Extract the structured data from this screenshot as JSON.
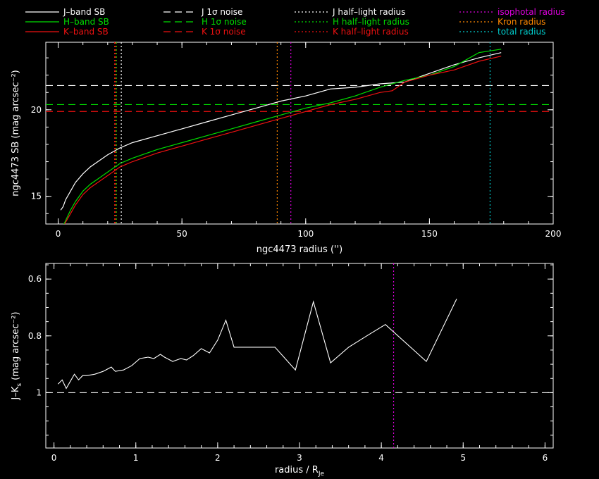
{
  "legend": {
    "items": [
      {
        "label": "J–band SB",
        "color": "#ffffff",
        "dash": "solid"
      },
      {
        "label": "H–band SB",
        "color": "#00dd00",
        "dash": "solid"
      },
      {
        "label": "K–band SB",
        "color": "#ee1111",
        "dash": "solid"
      },
      {
        "label": "J 1σ noise",
        "color": "#ffffff",
        "dash": "dashed"
      },
      {
        "label": "H 1σ noise",
        "color": "#00dd00",
        "dash": "dashed"
      },
      {
        "label": "K 1σ noise",
        "color": "#ee1111",
        "dash": "dashed"
      },
      {
        "label": "J half–light radius",
        "color": "#ffffff",
        "dash": "dotted"
      },
      {
        "label": "H half–light radius",
        "color": "#00dd00",
        "dash": "dotted"
      },
      {
        "label": "K half–light radius",
        "color": "#ee1111",
        "dash": "dotted"
      },
      {
        "label": "isophotal radius",
        "color": "#dd00dd",
        "dash": "dotted"
      },
      {
        "label": "Kron radius",
        "color": "#ff8800",
        "dash": "dotted"
      },
      {
        "label": "total radius",
        "color": "#00cccc",
        "dash": "dotted"
      }
    ]
  },
  "chart_data": [
    {
      "type": "line",
      "xlabel": "ngc4473 radius ('')",
      "ylabel": "ngc4473 SB (mag arcsec⁻²)",
      "xlim": [
        -5,
        200
      ],
      "ylim": [
        23.9,
        13.4
      ],
      "xticks": [
        0,
        50,
        100,
        150,
        200
      ],
      "yticks": [
        15,
        20
      ],
      "series": [
        {
          "name": "J–band SB",
          "color": "#ffffff",
          "x": [
            1,
            2,
            3,
            5,
            7,
            10,
            13,
            16,
            20,
            25,
            30,
            40,
            50,
            60,
            70,
            80,
            90,
            100,
            110,
            120,
            130,
            140,
            150,
            160,
            170,
            179
          ],
          "y": [
            14.2,
            14.4,
            14.8,
            15.3,
            15.8,
            16.3,
            16.7,
            17.0,
            17.4,
            17.8,
            18.1,
            18.5,
            18.9,
            19.3,
            19.7,
            20.1,
            20.5,
            20.8,
            21.2,
            21.3,
            21.5,
            21.6,
            22.1,
            22.6,
            23.0,
            23.3
          ]
        },
        {
          "name": "H–band SB",
          "color": "#00dd00",
          "x": [
            1,
            2,
            3,
            5,
            7,
            10,
            13,
            16,
            20,
            25,
            30,
            40,
            50,
            60,
            70,
            80,
            90,
            100,
            110,
            120,
            130,
            140,
            150,
            160,
            170,
            179
          ],
          "y": [
            13.1,
            13.3,
            13.6,
            14.2,
            14.7,
            15.3,
            15.7,
            16.0,
            16.4,
            16.9,
            17.2,
            17.7,
            18.1,
            18.5,
            18.9,
            19.3,
            19.7,
            20.1,
            20.4,
            20.8,
            21.3,
            21.7,
            22.0,
            22.5,
            23.3,
            23.5
          ]
        },
        {
          "name": "K–band SB",
          "color": "#ee1111",
          "x": [
            1,
            2,
            3,
            5,
            7,
            10,
            13,
            16,
            20,
            25,
            30,
            40,
            50,
            60,
            70,
            80,
            90,
            100,
            110,
            120,
            130,
            135,
            140,
            150,
            160,
            170,
            179
          ],
          "y": [
            13.0,
            13.2,
            13.5,
            14.0,
            14.5,
            15.1,
            15.5,
            15.8,
            16.2,
            16.7,
            17.0,
            17.5,
            17.9,
            18.3,
            18.7,
            19.1,
            19.5,
            19.9,
            20.3,
            20.6,
            21.0,
            21.1,
            21.6,
            22.0,
            22.3,
            22.8,
            23.1
          ]
        }
      ],
      "noise_levels": [
        {
          "label": "J 1σ noise",
          "color": "#ffffff",
          "y": 21.4
        },
        {
          "label": "H 1σ noise",
          "color": "#00dd00",
          "y": 20.3
        },
        {
          "label": "K 1σ noise",
          "color": "#ee1111",
          "y": 19.9
        }
      ],
      "radius_markers": [
        {
          "label": "J half–light radius",
          "color": "#ffffff",
          "x": 25.5
        },
        {
          "label": "H half–light radius",
          "color": "#00dd00",
          "x": 23.5
        },
        {
          "label": "K half–light radius",
          "color": "#ee1111",
          "x": 22.8
        },
        {
          "label": "isophotal radius",
          "color": "#dd00dd",
          "x": 94
        },
        {
          "label": "Kron radius",
          "color": "#ff8800",
          "x": 88.5
        },
        {
          "label": "Kron radius",
          "color": "#ff8800",
          "x": 23.3
        },
        {
          "label": "total radius",
          "color": "#00cccc",
          "x": 174.5
        }
      ]
    },
    {
      "type": "line",
      "xlabel": "radius / R",
      "xlabel_sub": "Je",
      "ylabel": "J–K",
      "ylabel_sub": "s",
      "ylabel_tail": " (mag arcsec⁻²)",
      "xlim": [
        -0.1,
        6.1
      ],
      "ylim": [
        0.545,
        1.195
      ],
      "xticks": [
        0,
        1,
        2,
        3,
        4,
        5,
        6
      ],
      "yticks": [
        0.6,
        0.8,
        1
      ],
      "reference_line": {
        "y": 1.0,
        "color": "#ffffff"
      },
      "radius_marker": {
        "x": 4.15,
        "color": "#dd00dd"
      },
      "series": [
        {
          "color": "#ffffff",
          "x": [
            0.05,
            0.1,
            0.15,
            0.2,
            0.25,
            0.3,
            0.35,
            0.4,
            0.5,
            0.6,
            0.7,
            0.75,
            0.85,
            0.95,
            1.05,
            1.15,
            1.22,
            1.3,
            1.35,
            1.45,
            1.55,
            1.62,
            1.7,
            1.8,
            1.9,
            2.0,
            2.1,
            2.2,
            2.35,
            2.5,
            2.7,
            2.95,
            3.17,
            3.38,
            3.6,
            3.85,
            4.05,
            4.55,
            4.92
          ],
          "y": [
            0.97,
            0.955,
            0.985,
            0.96,
            0.935,
            0.955,
            0.94,
            0.94,
            0.935,
            0.925,
            0.91,
            0.925,
            0.92,
            0.905,
            0.88,
            0.875,
            0.88,
            0.865,
            0.875,
            0.89,
            0.88,
            0.885,
            0.87,
            0.845,
            0.86,
            0.815,
            0.745,
            0.84,
            0.84,
            0.84,
            0.84,
            0.92,
            0.68,
            0.895,
            0.84,
            0.795,
            0.76,
            0.89,
            0.67
          ]
        }
      ]
    }
  ]
}
